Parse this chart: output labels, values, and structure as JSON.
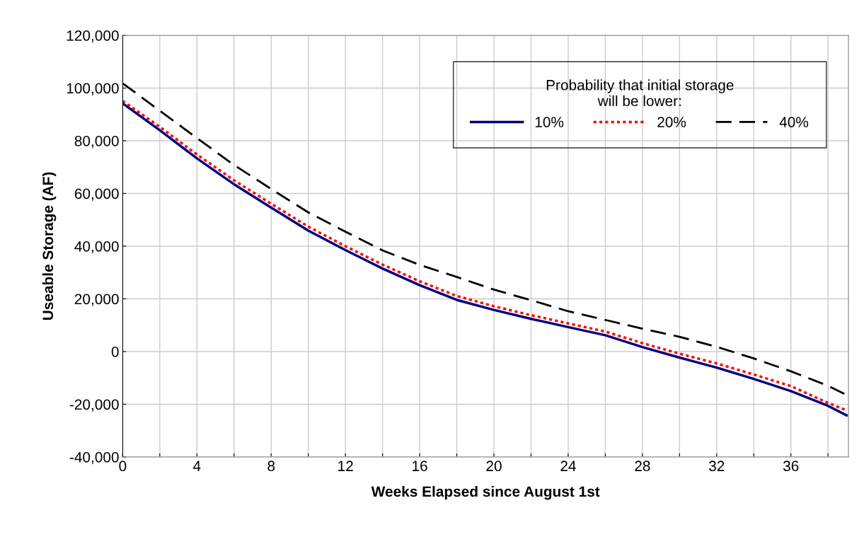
{
  "chart_data": {
    "type": "line",
    "xlabel": "Weeks Elapsed since August 1st",
    "ylabel": "Useable Storage (AF)",
    "legend_title": "Probability that initial storage\nwill be lower:",
    "x": [
      0,
      2,
      4,
      6,
      8,
      10,
      12,
      14,
      16,
      18,
      20,
      22,
      24,
      26,
      28,
      30,
      32,
      34,
      36,
      38,
      39
    ],
    "series": [
      {
        "name": "10%",
        "color": "#000080",
        "line_style": "solid",
        "values": [
          94200,
          84000,
          73300,
          63500,
          54600,
          45900,
          38500,
          31500,
          25200,
          19600,
          15800,
          12400,
          9300,
          6200,
          1700,
          -2300,
          -6100,
          -10400,
          -15000,
          -20600,
          -24200
        ]
      },
      {
        "name": "20%",
        "color": "#ff0000",
        "line_style": "dotted",
        "values": [
          95100,
          85300,
          74800,
          65000,
          56100,
          47400,
          40000,
          33000,
          26700,
          21100,
          17200,
          13800,
          10700,
          7600,
          3200,
          -800,
          -4500,
          -8700,
          -13100,
          -19500,
          -22300
        ]
      },
      {
        "name": "40%",
        "color": "#000000",
        "line_style": "dashed",
        "values": [
          101800,
          91400,
          81000,
          70800,
          61700,
          52800,
          45500,
          38400,
          32900,
          28300,
          23500,
          19500,
          15300,
          12000,
          8700,
          5600,
          1800,
          -2600,
          -7500,
          -13000,
          -16500
        ]
      }
    ],
    "xlim": [
      0,
      39.1
    ],
    "xticks": [
      0,
      {
        "value": 2,
        "label": null
      },
      4,
      {
        "value": 6,
        "label": null
      },
      8,
      {
        "value": 10,
        "label": null
      },
      12,
      {
        "value": 14,
        "label": null
      },
      16,
      {
        "value": 18,
        "label": null
      },
      20,
      {
        "value": 22,
        "label": null
      },
      24,
      {
        "value": 26,
        "label": null
      },
      28,
      {
        "value": 30,
        "label": null
      },
      32,
      {
        "value": 34,
        "label": null
      },
      36,
      {
        "value": 38,
        "label": null
      }
    ],
    "ylim": [
      -40000,
      120000
    ],
    "yticks": [
      {
        "value": -40000,
        "label": "-40,000"
      },
      {
        "value": -20000,
        "label": "-20,000"
      },
      {
        "value": 0,
        "label": "0"
      },
      {
        "value": 20000,
        "label": "20,000"
      },
      {
        "value": 40000,
        "label": "40,000"
      },
      {
        "value": 60000,
        "label": "60,000"
      },
      {
        "value": 80000,
        "label": "80,000"
      },
      {
        "value": 100000,
        "label": "100,000"
      },
      {
        "value": 120000,
        "label": "120,000"
      }
    ],
    "grid": true,
    "legend": "top right"
  }
}
